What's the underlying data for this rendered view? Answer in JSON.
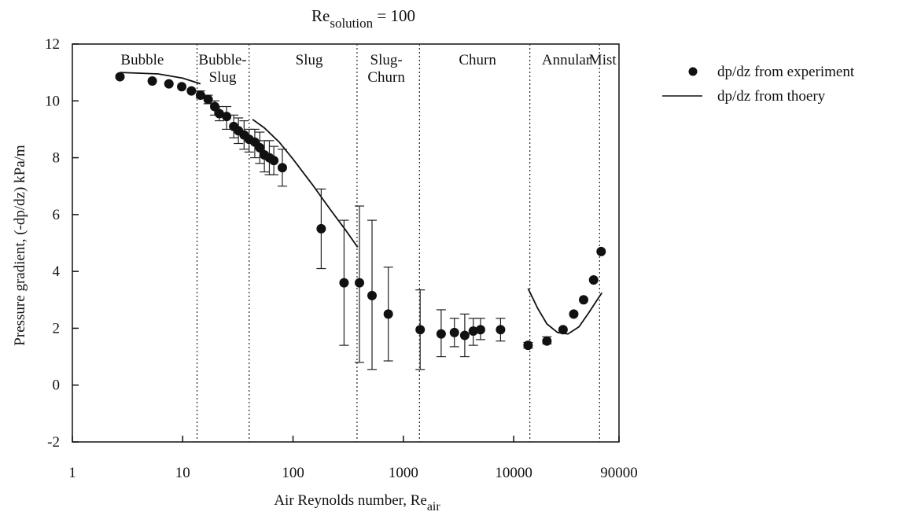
{
  "chart_data": {
    "type": "scatter",
    "title": {
      "main": "Re",
      "sub": "solution",
      "suffix": " = 100"
    },
    "xlabel": {
      "main": "Air Reynolds number, Re",
      "sub": "air"
    },
    "ylabel": "Pressure gradient, (-dp/dz) kPa/m",
    "xscale": "log",
    "xlim": [
      1,
      90000
    ],
    "ylim": [
      -2,
      12
    ],
    "x_ticks": [
      {
        "value": 1,
        "label": "1"
      },
      {
        "value": 10,
        "label": "10"
      },
      {
        "value": 100,
        "label": "100"
      },
      {
        "value": 1000,
        "label": "1000"
      },
      {
        "value": 10000,
        "label": "10000"
      },
      {
        "value": 90000,
        "label": "90000"
      }
    ],
    "y_ticks": [
      {
        "value": -2,
        "label": "-2"
      },
      {
        "value": 0,
        "label": "0"
      },
      {
        "value": 2,
        "label": "2"
      },
      {
        "value": 4,
        "label": "4"
      },
      {
        "value": 6,
        "label": "6"
      },
      {
        "value": 8,
        "label": "8"
      },
      {
        "value": 10,
        "label": "10"
      },
      {
        "value": 12,
        "label": "12"
      }
    ],
    "grid": false,
    "legend_position": "outside-right",
    "boundaries": [
      13.5,
      40,
      380,
      1400,
      14000,
      60000
    ],
    "regions": [
      {
        "lines": [
          "Bubble"
        ],
        "x": 4.3
      },
      {
        "lines": [
          "Bubble-",
          "Slug"
        ],
        "x": 23
      },
      {
        "lines": [
          "Slug"
        ],
        "x": 140
      },
      {
        "lines": [
          "Slug-",
          "Churn"
        ],
        "x": 700
      },
      {
        "lines": [
          "Churn"
        ],
        "x": 4700
      },
      {
        "lines": [
          "Annular"
        ],
        "x": 30000
      },
      {
        "lines": [
          "Mist"
        ],
        "x": 64000
      }
    ],
    "series": [
      {
        "name": "dp/dz from experiment",
        "kind": "points",
        "color": "#111111",
        "points": [
          {
            "x": 2.7,
            "y": 10.85
          },
          {
            "x": 5.3,
            "y": 10.7
          },
          {
            "x": 7.5,
            "y": 10.6
          },
          {
            "x": 9.8,
            "y": 10.5
          },
          {
            "x": 12,
            "y": 10.35
          },
          {
            "x": 14.5,
            "y": 10.2,
            "err": [
              10.1,
              10.35
            ]
          },
          {
            "x": 17,
            "y": 10.05,
            "err": [
              9.9,
              10.2
            ]
          },
          {
            "x": 19.5,
            "y": 9.8,
            "err": [
              9.5,
              10.0
            ]
          },
          {
            "x": 21.5,
            "y": 9.55,
            "err": [
              9.3,
              9.8
            ]
          },
          {
            "x": 25,
            "y": 9.45,
            "err": [
              9.0,
              9.8
            ]
          },
          {
            "x": 29,
            "y": 9.1,
            "err": [
              8.7,
              9.5
            ]
          },
          {
            "x": 32,
            "y": 8.95,
            "err": [
              8.5,
              9.4
            ]
          },
          {
            "x": 36,
            "y": 8.8,
            "err": [
              8.3,
              9.3
            ]
          },
          {
            "x": 40,
            "y": 8.65,
            "err": [
              8.2,
              9.0
            ]
          },
          {
            "x": 45,
            "y": 8.55,
            "err": [
              8.0,
              9.0
            ]
          },
          {
            "x": 50,
            "y": 8.35,
            "err": [
              7.8,
              8.9
            ]
          },
          {
            "x": 55,
            "y": 8.1,
            "err": [
              7.5,
              8.6
            ]
          },
          {
            "x": 61,
            "y": 8.0,
            "err": [
              7.4,
              8.6
            ]
          },
          {
            "x": 67,
            "y": 7.9,
            "err": [
              7.4,
              8.4
            ]
          },
          {
            "x": 80,
            "y": 7.65,
            "err": [
              7.0,
              8.3
            ]
          },
          {
            "x": 180,
            "y": 5.5,
            "err": [
              4.1,
              6.9
            ]
          },
          {
            "x": 290,
            "y": 3.6,
            "err": [
              1.4,
              5.8
            ]
          },
          {
            "x": 400,
            "y": 3.6,
            "err": [
              0.8,
              6.3
            ]
          },
          {
            "x": 520,
            "y": 3.15,
            "err": [
              0.55,
              5.8
            ]
          },
          {
            "x": 730,
            "y": 2.5,
            "err": [
              0.85,
              4.15
            ]
          },
          {
            "x": 1420,
            "y": 1.95,
            "err": [
              0.55,
              3.35
            ]
          },
          {
            "x": 2200,
            "y": 1.8,
            "err": [
              1.0,
              2.65
            ]
          },
          {
            "x": 2900,
            "y": 1.85,
            "err": [
              1.35,
              2.35
            ]
          },
          {
            "x": 3600,
            "y": 1.75,
            "err": [
              1.0,
              2.5
            ]
          },
          {
            "x": 4300,
            "y": 1.9,
            "err": [
              1.4,
              2.35
            ]
          },
          {
            "x": 5000,
            "y": 1.95,
            "err": [
              1.6,
              2.35
            ]
          },
          {
            "x": 7600,
            "y": 1.95,
            "err": [
              1.55,
              2.35
            ]
          },
          {
            "x": 13500,
            "y": 1.4,
            "err": [
              1.3,
              1.5
            ]
          },
          {
            "x": 20000,
            "y": 1.55,
            "err": [
              1.45,
              1.7
            ]
          },
          {
            "x": 28000,
            "y": 1.95
          },
          {
            "x": 35000,
            "y": 2.5
          },
          {
            "x": 43000,
            "y": 3.0
          },
          {
            "x": 53000,
            "y": 3.7
          },
          {
            "x": 62000,
            "y": 4.7
          }
        ]
      },
      {
        "name": "dp/dz from thoery",
        "kind": "line",
        "color": "#111111",
        "segments": [
          [
            {
              "x": 2.7,
              "y": 11.0
            },
            {
              "x": 6,
              "y": 10.95
            },
            {
              "x": 10,
              "y": 10.8
            },
            {
              "x": 14.5,
              "y": 10.6
            }
          ],
          [
            {
              "x": 43,
              "y": 9.35
            },
            {
              "x": 55,
              "y": 9.05
            },
            {
              "x": 75,
              "y": 8.55
            },
            {
              "x": 100,
              "y": 7.95
            },
            {
              "x": 150,
              "y": 7.05
            },
            {
              "x": 220,
              "y": 6.15
            },
            {
              "x": 300,
              "y": 5.45
            },
            {
              "x": 385,
              "y": 4.85
            }
          ],
          [
            {
              "x": 13500,
              "y": 3.4
            },
            {
              "x": 16500,
              "y": 2.7
            },
            {
              "x": 20000,
              "y": 2.15
            },
            {
              "x": 25000,
              "y": 1.85
            },
            {
              "x": 31000,
              "y": 1.8
            },
            {
              "x": 39000,
              "y": 2.05
            },
            {
              "x": 48000,
              "y": 2.55
            },
            {
              "x": 56000,
              "y": 2.95
            },
            {
              "x": 63000,
              "y": 3.25
            }
          ]
        ]
      }
    ]
  }
}
